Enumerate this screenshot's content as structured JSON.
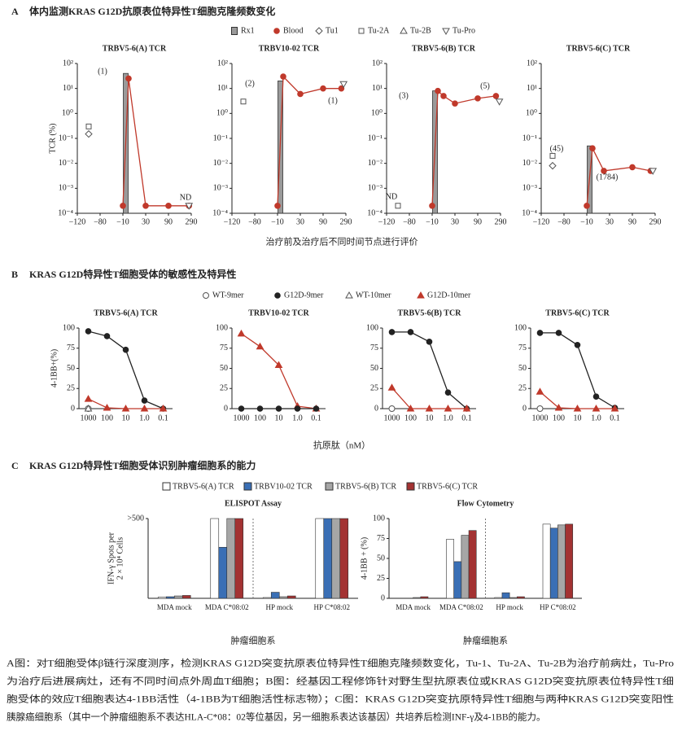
{
  "panels": [
    {
      "label": "A",
      "title": "体内监测KRAS G12D抗原表位特异性T细胞克隆频数变化",
      "x_label": "治疗前及治疗后不同时间节点进行评价"
    },
    {
      "label": "B",
      "title": "KRAS G12D特异性T细胞受体的敏感性及特异性",
      "x_label": "抗原肽（nM）"
    },
    {
      "label": "C",
      "title": "KRAS G12D特异性T细胞受体识别肿瘤细胞系的能力"
    }
  ],
  "chart_data": [
    {
      "type": "line",
      "title": "TRBV5-6(A) TCR",
      "y_label": "TCR (%)",
      "log_y": true,
      "ylim": [
        0.0001,
        100
      ],
      "yticks": [
        {
          "value": 100,
          "label": "10²"
        },
        {
          "value": 10,
          "label": "10¹"
        },
        {
          "value": 1,
          "label": "10⁰"
        },
        {
          "value": 0.1,
          "label": "10⁻¹"
        },
        {
          "value": 0.01,
          "label": "10⁻²"
        },
        {
          "value": 0.001,
          "label": "10⁻³"
        },
        {
          "value": 0.0001,
          "label": "10⁻⁴"
        }
      ],
      "xlim": [
        -120,
        290
      ],
      "xticks": [
        {
          "value": -120,
          "label": "−120"
        },
        {
          "value": -80,
          "label": "−80"
        },
        {
          "value": -10,
          "label": "−10"
        },
        30,
        90,
        290
      ],
      "series": [
        {
          "name": "Rx1",
          "type": "bar",
          "color": "#9a9a9a",
          "x": [
            -5
          ],
          "values": [
            40
          ]
        },
        {
          "name": "Blood",
          "color": "#c0392b",
          "marker": "circle",
          "line": true,
          "x": [
            -10,
            0,
            30,
            90,
            270
          ],
          "values": [
            0.0002,
            25,
            0.0002,
            0.0002,
            0.0002
          ]
        },
        {
          "name": "Tu1",
          "color": "#555555",
          "marker": "diamond-open",
          "x": [
            -100
          ],
          "values": [
            0.15
          ]
        },
        {
          "name": "Tu-2A",
          "color": "#555555",
          "marker": "square-open",
          "x": [
            -100
          ],
          "values": [
            0.3
          ]
        },
        {
          "name": "Tu-2B",
          "color": "#555555",
          "marker": "triangle-up-open",
          "x": [],
          "values": []
        },
        {
          "name": "Tu-Pro",
          "color": "#555555",
          "marker": "triangle-down-open",
          "x": [
            270
          ],
          "values": [
            0.0002
          ]
        }
      ],
      "annotations": [
        "(1)",
        "ND"
      ]
    },
    {
      "type": "line",
      "title": "TRBV10-02 TCR",
      "log_y": true,
      "ylim": [
        0.0001,
        100
      ],
      "yticks": [
        {
          "value": 100,
          "label": "10²"
        },
        {
          "value": 10,
          "label": "10¹"
        },
        {
          "value": 1,
          "label": "10⁰"
        },
        {
          "value": 0.1,
          "label": "10⁻¹"
        },
        {
          "value": 0.01,
          "label": "10⁻²"
        },
        {
          "value": 0.001,
          "label": "10⁻³"
        },
        {
          "value": 0.0001,
          "label": "10⁻⁴"
        }
      ],
      "xlim": [
        -120,
        290
      ],
      "xticks": [
        {
          "value": -120,
          "label": "−120"
        },
        {
          "value": -80,
          "label": "−80"
        },
        {
          "value": -10,
          "label": "−10"
        },
        30,
        90,
        290
      ],
      "series": [
        {
          "name": "Rx1",
          "type": "bar",
          "color": "#9a9a9a",
          "x": [
            -5
          ],
          "values": [
            20
          ]
        },
        {
          "name": "Blood",
          "color": "#c0392b",
          "marker": "circle",
          "line": true,
          "x": [
            -10,
            0,
            30,
            90,
            250
          ],
          "values": [
            0.0002,
            30,
            6,
            10,
            10
          ]
        },
        {
          "name": "Tu-2A",
          "color": "#555555",
          "marker": "square-open",
          "x": [
            -100
          ],
          "values": [
            3
          ]
        },
        {
          "name": "Tu-Pro",
          "color": "#555555",
          "marker": "triangle-down-open",
          "x": [
            270
          ],
          "values": [
            15
          ]
        }
      ],
      "annotations": [
        "(2)",
        "(1)"
      ]
    },
    {
      "type": "line",
      "title": "TRBV5-6(B) TCR",
      "log_y": true,
      "ylim": [
        0.0001,
        100
      ],
      "yticks": [
        {
          "value": 100,
          "label": "10²"
        },
        {
          "value": 10,
          "label": "10¹"
        },
        {
          "value": 1,
          "label": "10⁰"
        },
        {
          "value": 0.1,
          "label": "10⁻¹"
        },
        {
          "value": 0.01,
          "label": "10⁻²"
        },
        {
          "value": 0.001,
          "label": "10⁻³"
        },
        {
          "value": 0.0001,
          "label": "10⁻⁴"
        }
      ],
      "xlim": [
        -120,
        290
      ],
      "xticks": [
        {
          "value": -120,
          "label": "−120"
        },
        {
          "value": -80,
          "label": "−80"
        },
        {
          "value": -10,
          "label": "−10"
        },
        30,
        90,
        290
      ],
      "series": [
        {
          "name": "Rx1",
          "type": "bar",
          "color": "#9a9a9a",
          "x": [
            -5
          ],
          "values": [
            8
          ]
        },
        {
          "name": "Blood",
          "color": "#c0392b",
          "marker": "circle",
          "line": true,
          "x": [
            -10,
            0,
            10,
            30,
            90,
            250
          ],
          "values": [
            0.0002,
            8,
            5,
            2.5,
            4,
            5
          ]
        },
        {
          "name": "Tu-2A",
          "color": "#555555",
          "marker": "square-open",
          "x": [
            -100
          ],
          "values": [
            0.0002
          ]
        },
        {
          "name": "Tu-Pro",
          "color": "#555555",
          "marker": "triangle-down-open",
          "x": [
            280
          ],
          "values": [
            3
          ]
        }
      ],
      "annotations": [
        "(3)",
        "(5)",
        "ND"
      ]
    },
    {
      "type": "line",
      "title": "TRBV5-6(C) TCR",
      "log_y": true,
      "ylim": [
        0.0001,
        100
      ],
      "yticks": [
        {
          "value": 100,
          "label": "10²"
        },
        {
          "value": 10,
          "label": "10¹"
        },
        {
          "value": 1,
          "label": "10⁰"
        },
        {
          "value": 0.1,
          "label": "10⁻¹"
        },
        {
          "value": 0.01,
          "label": "10⁻²"
        },
        {
          "value": 0.001,
          "label": "10⁻³"
        },
        {
          "value": 0.0001,
          "label": "10⁻⁴"
        }
      ],
      "xlim": [
        -120,
        290
      ],
      "xticks": [
        {
          "value": -120,
          "label": "−120"
        },
        {
          "value": -80,
          "label": "−80"
        },
        {
          "value": -10,
          "label": "−10"
        },
        30,
        90,
        290
      ],
      "series": [
        {
          "name": "Rx1",
          "type": "bar",
          "color": "#9a9a9a",
          "x": [
            -5
          ],
          "values": [
            0.05
          ]
        },
        {
          "name": "Blood",
          "color": "#c0392b",
          "marker": "circle",
          "line": true,
          "x": [
            -10,
            0,
            20,
            90,
            250
          ],
          "values": [
            0.0002,
            0.04,
            0.005,
            0.007,
            0.005
          ]
        },
        {
          "name": "Tu1",
          "color": "#555555",
          "marker": "diamond-open",
          "x": [
            -100
          ],
          "values": [
            0.008
          ]
        },
        {
          "name": "Tu-2A",
          "color": "#555555",
          "marker": "square-open",
          "x": [
            -100
          ],
          "values": [
            0.02
          ]
        },
        {
          "name": "Tu-Pro",
          "color": "#555555",
          "marker": "triangle-down-open",
          "x": [
            270
          ],
          "values": [
            0.005
          ]
        }
      ],
      "annotations": [
        "(45)",
        "(1784)"
      ]
    },
    {
      "type": "line",
      "title": "TRBV5-6(A) TCR",
      "y_label": "4-1BB+(%)",
      "ylim": [
        0,
        100
      ],
      "yticks": [
        0,
        25,
        50,
        75,
        100
      ],
      "categories": [
        "1000",
        "100",
        "10",
        "1.0",
        "0.1"
      ],
      "series": [
        {
          "name": "WT-9mer",
          "color": "#555555",
          "marker": "circle-open",
          "values": [
            0,
            null,
            null,
            null,
            null
          ]
        },
        {
          "name": "G12D-9mer",
          "color": "#222222",
          "marker": "circle",
          "line": true,
          "values": [
            96,
            90,
            73,
            10,
            0
          ]
        },
        {
          "name": "WT-10mer",
          "color": "#555555",
          "marker": "triangle-up-open",
          "values": [
            0,
            null,
            null,
            null,
            null
          ]
        },
        {
          "name": "G12D-10mer",
          "color": "#c0392b",
          "marker": "triangle-up",
          "line": true,
          "values": [
            12,
            1,
            0,
            0,
            0
          ]
        }
      ]
    },
    {
      "type": "line",
      "title": "TRBV10-02 TCR",
      "ylim": [
        0,
        100
      ],
      "yticks": [
        0,
        25,
        50,
        75,
        100
      ],
      "categories": [
        "1000",
        "100",
        "10",
        "1.0",
        "0.1"
      ],
      "series": [
        {
          "name": "G12D-10mer",
          "color": "#c0392b",
          "marker": "triangle-up",
          "line": true,
          "values": [
            93,
            77,
            54,
            3,
            0
          ]
        },
        {
          "name": "G12D-9mer",
          "color": "#222222",
          "marker": "circle",
          "line": true,
          "values": [
            0,
            0,
            0,
            0,
            0
          ]
        }
      ]
    },
    {
      "type": "line",
      "title": "TRBV5-6(B) TCR",
      "ylim": [
        0,
        100
      ],
      "yticks": [
        0,
        25,
        50,
        75,
        100
      ],
      "categories": [
        "1000",
        "100",
        "10",
        "1.0",
        "0.1"
      ],
      "series": [
        {
          "name": "WT-9mer",
          "color": "#555555",
          "marker": "circle-open",
          "values": [
            0,
            null,
            null,
            null,
            null
          ]
        },
        {
          "name": "G12D-9mer",
          "color": "#222222",
          "marker": "circle",
          "line": true,
          "values": [
            95,
            95,
            83,
            20,
            0
          ]
        },
        {
          "name": "G12D-10mer",
          "color": "#c0392b",
          "marker": "triangle-up",
          "line": true,
          "values": [
            26,
            0,
            0,
            0,
            0
          ]
        }
      ]
    },
    {
      "type": "line",
      "title": "TRBV5-6(C) TCR",
      "ylim": [
        0,
        100
      ],
      "yticks": [
        0,
        25,
        50,
        75,
        100
      ],
      "categories": [
        "1000",
        "100",
        "10",
        "1.0",
        "0.1"
      ],
      "series": [
        {
          "name": "WT-9mer",
          "color": "#555555",
          "marker": "circle-open",
          "values": [
            0,
            null,
            null,
            null,
            null
          ]
        },
        {
          "name": "G12D-9mer",
          "color": "#222222",
          "marker": "circle",
          "line": true,
          "values": [
            94,
            94,
            79,
            15,
            1
          ]
        },
        {
          "name": "G12D-10mer",
          "color": "#c0392b",
          "marker": "triangle-up",
          "line": true,
          "values": [
            21,
            1,
            0,
            0,
            0
          ]
        }
      ]
    },
    {
      "type": "bar",
      "title": "ELISPOT Assay",
      "y_label": [
        "IFN-γ Spots per",
        "2 × 10⁴ Cells"
      ],
      "x_label": "肿瘤细胞系",
      "divider": true,
      "ylim": [
        0,
        500
      ],
      "yticks": [
        {
          "value": 500,
          "label": ">500"
        }
      ],
      "categories": [
        "MDA mock",
        "MDA C*08:02",
        "HP mock",
        "HP C*08:02"
      ],
      "series": [
        {
          "name": "TRBV5-6(A) TCR",
          "color": "#ffffff",
          "values": [
            8,
            500,
            5,
            500
          ]
        },
        {
          "name": "TRBV10-02 TCR",
          "color": "#3a6fb5",
          "values": [
            10,
            320,
            38,
            500
          ]
        },
        {
          "name": "TRBV5-6(B) TCR",
          "color": "#a6a6a6",
          "values": [
            15,
            500,
            10,
            500
          ]
        },
        {
          "name": "TRBV5-6(C) TCR",
          "color": "#a33232",
          "values": [
            18,
            500,
            15,
            500
          ]
        }
      ]
    },
    {
      "type": "bar",
      "title": "Flow Cytometry",
      "y_label": "4-1BB + (%)",
      "x_label": "肿瘤细胞系",
      "divider": true,
      "ylim": [
        0,
        100
      ],
      "yticks": [
        0,
        25,
        50,
        75,
        100
      ],
      "categories": [
        "MDA mock",
        "MDA C*08:02",
        "HP mock",
        "HP C*08:02"
      ],
      "series": [
        {
          "name": "TRBV5-6(A) TCR",
          "color": "#ffffff",
          "values": [
            0,
            74,
            1,
            93
          ]
        },
        {
          "name": "TRBV10-02 TCR",
          "color": "#3a6fb5",
          "values": [
            0,
            46,
            7,
            88
          ]
        },
        {
          "name": "TRBV5-6(B) TCR",
          "color": "#a6a6a6",
          "values": [
            1,
            79,
            1,
            92
          ]
        },
        {
          "name": "TRBV5-6(C) TCR",
          "color": "#a33232",
          "values": [
            2,
            85,
            2,
            93
          ]
        }
      ]
    }
  ],
  "caption": [
    "A图：对T细胞受体β链行深度测序，检测KRAS G12D突变抗原表位特异性T细胞克隆频数变化，Tu-1、Tu-2A、Tu-2B为治疗前病灶，Tu-Pro",
    "为治疗后进展病灶，还有不同时间点外周血T细胞；B图：经基因工程修饰针对野生型抗原表位或KRAS G12D突变抗原表位特异性T细",
    "胞受体的效应T细胞表达4-1BB活性（4-1BB为T细胞活性标志物）；C图：KRAS G12D突变抗原特异性T细胞与两种KRAS G12D突变阳性",
    "胰腺癌细胞系（其中一个肿瘤细胞系不表达HLA-C*08：02等位基因，另一细胞系表达该基因）共培养后检测INF-γ及4-1BB的能力。"
  ]
}
